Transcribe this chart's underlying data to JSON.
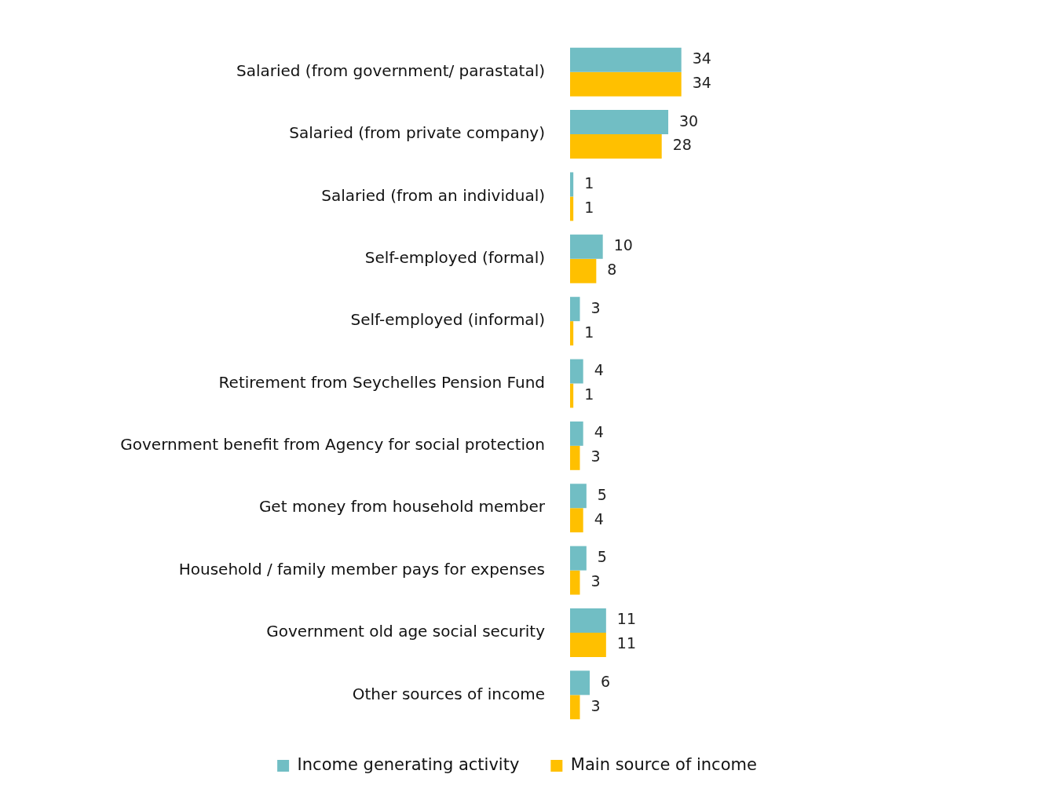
{
  "chart_data": {
    "type": "bar",
    "orientation": "horizontal",
    "categories": [
      "Salaried (from government/ parastatal)",
      "Salaried (from private company)",
      "Salaried (from an individual)",
      "Self-employed (formal)",
      "Self-employed (informal)",
      "Retirement from Seychelles Pension Fund",
      "Government benefit from Agency for social protection",
      "Get money from household member",
      "Household / family member pays for expenses",
      "Government old age social security",
      "Other sources of income"
    ],
    "series": [
      {
        "name": "Income generating activity",
        "color": "#71bec4",
        "values": [
          34,
          30,
          1,
          10,
          3,
          4,
          4,
          5,
          5,
          11,
          6
        ]
      },
      {
        "name": "Main source of income",
        "color": "#ffc000",
        "values": [
          34,
          28,
          1,
          8,
          1,
          1,
          3,
          4,
          3,
          11,
          3
        ]
      }
    ],
    "data_labels": true,
    "grid": false,
    "legend": "bottom",
    "tick_labels": "y"
  }
}
